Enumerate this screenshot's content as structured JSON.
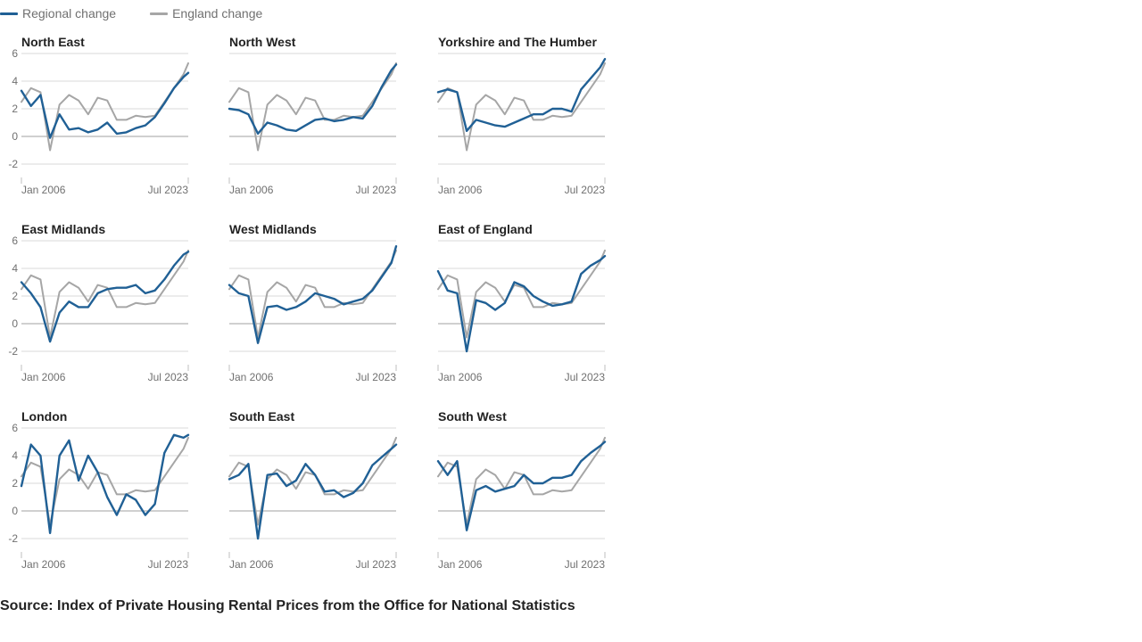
{
  "legend": {
    "regional_label": "Regional change",
    "england_label": "England change"
  },
  "colors": {
    "regional": "#206095",
    "england": "#a6a6a6",
    "grid": "#d9d9d9",
    "zero_line": "#b3b3b3",
    "tick_text": "#707070",
    "title_text": "#222222"
  },
  "source": "Source: Index of Private Housing Rental Prices from the Office for National Statistics",
  "chart_data": {
    "type": "line",
    "layout": "small-multiples",
    "grid": true,
    "legend_position": "top-left",
    "x_tick_labels": [
      "Jan 2006",
      "Jul 2023"
    ],
    "ylim": [
      -2,
      6
    ],
    "y_ticks": [
      6,
      4,
      2,
      0,
      -2
    ],
    "x_dates": [
      "2006-01",
      "2007-01",
      "2008-01",
      "2009-01",
      "2010-01",
      "2011-01",
      "2012-01",
      "2013-01",
      "2014-01",
      "2015-01",
      "2016-01",
      "2017-01",
      "2018-01",
      "2019-01",
      "2020-01",
      "2021-01",
      "2022-01",
      "2023-01",
      "2023-07"
    ],
    "england": [
      2.5,
      3.5,
      3.2,
      -1.0,
      2.3,
      3.0,
      2.6,
      1.6,
      2.8,
      2.6,
      1.2,
      1.2,
      1.5,
      1.4,
      1.5,
      2.5,
      3.5,
      4.5,
      5.3
    ],
    "panels": [
      {
        "title": "North East",
        "regional": [
          3.3,
          2.2,
          3.0,
          -0.1,
          1.6,
          0.5,
          0.6,
          0.3,
          0.5,
          1.0,
          0.2,
          0.3,
          0.6,
          0.8,
          1.4,
          2.4,
          3.5,
          4.3,
          4.6
        ]
      },
      {
        "title": "North West",
        "regional": [
          2.0,
          1.9,
          1.6,
          0.2,
          1.0,
          0.8,
          0.5,
          0.4,
          0.8,
          1.2,
          1.3,
          1.1,
          1.2,
          1.4,
          1.3,
          2.2,
          3.6,
          4.8,
          5.2
        ]
      },
      {
        "title": "Yorkshire and The Humber",
        "regional": [
          3.2,
          3.4,
          3.2,
          0.4,
          1.2,
          1.0,
          0.8,
          0.7,
          1.0,
          1.3,
          1.6,
          1.6,
          2.0,
          2.0,
          1.8,
          3.4,
          4.2,
          5.0,
          5.6
        ]
      },
      {
        "title": "East Midlands",
        "regional": [
          3.0,
          2.2,
          1.2,
          -1.3,
          0.8,
          1.6,
          1.2,
          1.2,
          2.2,
          2.5,
          2.6,
          2.6,
          2.8,
          2.2,
          2.4,
          3.2,
          4.2,
          5.0,
          5.2
        ]
      },
      {
        "title": "West Midlands",
        "regional": [
          2.8,
          2.2,
          2.0,
          -1.4,
          1.2,
          1.3,
          1.0,
          1.2,
          1.6,
          2.2,
          2.0,
          1.8,
          1.4,
          1.6,
          1.8,
          2.4,
          3.4,
          4.4,
          5.6
        ]
      },
      {
        "title": "East of England",
        "regional": [
          3.8,
          2.4,
          2.2,
          -2.0,
          1.7,
          1.5,
          1.0,
          1.5,
          3.0,
          2.7,
          2.0,
          1.6,
          1.3,
          1.4,
          1.6,
          3.6,
          4.2,
          4.6,
          4.9
        ]
      },
      {
        "title": "London",
        "regional": [
          1.8,
          4.8,
          4.0,
          -1.6,
          4.0,
          5.1,
          2.2,
          4.0,
          2.8,
          1.0,
          -0.3,
          1.2,
          0.8,
          -0.3,
          0.5,
          4.2,
          5.5,
          5.3,
          5.5
        ]
      },
      {
        "title": "South East",
        "regional": [
          2.3,
          2.6,
          3.4,
          -2.0,
          2.6,
          2.7,
          1.8,
          2.2,
          3.4,
          2.6,
          1.4,
          1.5,
          1.0,
          1.3,
          2.0,
          3.3,
          3.9,
          4.5,
          4.8
        ]
      },
      {
        "title": "South West",
        "regional": [
          3.6,
          2.6,
          3.6,
          -1.4,
          1.5,
          1.8,
          1.4,
          1.6,
          1.8,
          2.6,
          2.0,
          2.0,
          2.4,
          2.4,
          2.6,
          3.6,
          4.2,
          4.7,
          5.0
        ]
      }
    ]
  }
}
